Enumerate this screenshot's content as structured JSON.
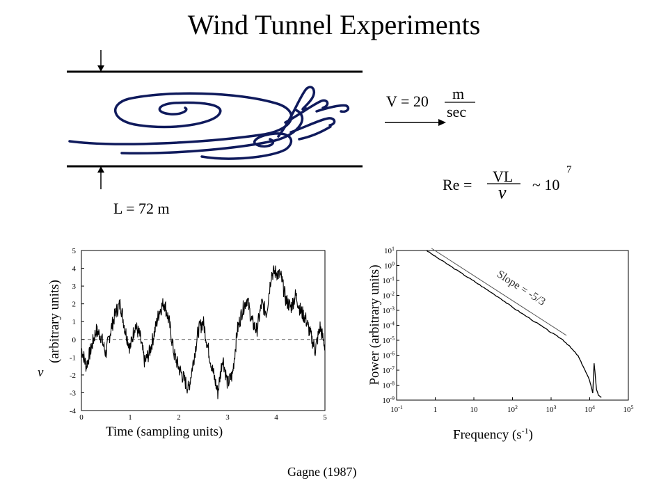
{
  "title": "Wind Tunnel Experiments",
  "tunnel": {
    "length_label": "L = 72 m",
    "velocity_prefix": "V = 20",
    "velocity_unit_num": "m",
    "velocity_unit_den": "sec",
    "re_prefix": "Re =",
    "re_num": "VL",
    "re_den": "ν",
    "re_approx": "~ 10",
    "re_exp": "7"
  },
  "citation": "Gagne (1987)",
  "chart_data": [
    {
      "type": "line",
      "title": "",
      "xlabel": "Time (sampling units)",
      "ylabel_symbol": "v",
      "ylabel": "(arbitrary units)",
      "xlim": [
        0,
        5
      ],
      "ylim": [
        -4,
        5
      ],
      "x_ticks": [
        "0",
        "1",
        "2",
        "3",
        "4",
        "5"
      ],
      "y_ticks": [
        "5",
        "4",
        "3",
        "2",
        "1",
        "0",
        "-1",
        "-2",
        "-3",
        "-4"
      ],
      "reference_line_y": 0,
      "series": [
        {
          "x": [
            0,
            0.1,
            0.2,
            0.3,
            0.4,
            0.5,
            0.6,
            0.7,
            0.8,
            0.9,
            1.0,
            1.1,
            1.2,
            1.3,
            1.4,
            1.5,
            1.6,
            1.7,
            1.8,
            1.9,
            2.0,
            2.1,
            2.2,
            2.3,
            2.4,
            2.5,
            2.6,
            2.7,
            2.8,
            2.9,
            3.0,
            3.1,
            3.2,
            3.3,
            3.4,
            3.5,
            3.6,
            3.7,
            3.8,
            3.9,
            4.0,
            4.1,
            4.2,
            4.3,
            4.4,
            4.5,
            4.6,
            4.7,
            4.8,
            4.9,
            5.0
          ],
          "values": [
            -0.5,
            -1.5,
            -0.5,
            0.5,
            0.2,
            -0.8,
            0.5,
            1.5,
            2.0,
            0.5,
            -0.5,
            0.8,
            0.2,
            -1.3,
            -0.7,
            0.4,
            1.6,
            2.1,
            1.0,
            -0.8,
            -1.6,
            -2.2,
            -2.8,
            -1.2,
            0.5,
            1.0,
            -0.5,
            -1.8,
            -3.0,
            -1.0,
            -2.5,
            -2.0,
            0.5,
            1.6,
            2.3,
            1.0,
            0.5,
            2.0,
            1.5,
            3.7,
            3.8,
            3.5,
            2.2,
            1.8,
            2.5,
            1.6,
            1.2,
            0.3,
            -0.6,
            0.7,
            -0.4
          ]
        }
      ]
    },
    {
      "type": "line",
      "title": "",
      "xlabel": "Frequency (s-1)",
      "ylabel": "Power (arbitrary units)",
      "x_scale": "log",
      "y_scale": "log",
      "xlim": [
        0.1,
        100000
      ],
      "ylim": [
        1e-09,
        10
      ],
      "x_ticks": [
        "10^-1",
        "1",
        "10",
        "10^2",
        "10^3",
        "10^4",
        "10^5"
      ],
      "y_ticks": [
        "10^1",
        "10^0",
        "10^-1",
        "10^-2",
        "10^-3",
        "10^-4",
        "10^-5",
        "10^-6",
        "10^-7",
        "10^-8",
        "10^-9"
      ],
      "annotation": "Slope = -5/3",
      "series": [
        {
          "x": [
            0.6,
            1,
            2,
            5,
            10,
            20,
            50,
            100,
            200,
            500,
            1000,
            2000,
            3000,
            5000,
            7000,
            10000,
            12000,
            13000,
            15000,
            17000,
            20000
          ],
          "values": [
            10,
            4,
            1.3,
            0.28,
            0.09,
            0.028,
            0.006,
            0.0016,
            0.0005,
            0.00011,
            3.3e-05,
            1.1e-05,
            4e-06,
            9e-07,
            1.5e-07,
            2e-08,
            3e-09,
            3e-07,
            5e-09,
            2e-09,
            1.5e-09
          ]
        }
      ]
    }
  ]
}
